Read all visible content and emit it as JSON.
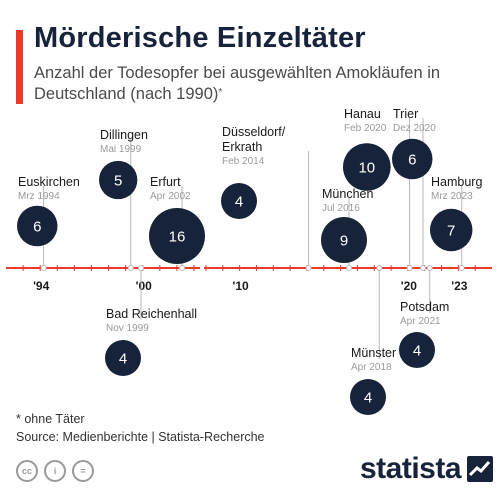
{
  "header": {
    "title": "Mörderische Einzeltäter",
    "subtitle": "Anzahl der Todesopfer bei ausgewählten Amokläufen in Deutschland (nach 1990)",
    "subtitle_mark": "*"
  },
  "chart_data": {
    "type": "timeline",
    "axis_range": [
      1992,
      2025
    ],
    "axis_break": [
      2003,
      2008
    ],
    "axis_labels": [
      "'94",
      "'00",
      "'10",
      "'20",
      "'23"
    ],
    "axis_label_years": [
      1994,
      2000,
      2010,
      2020,
      2023
    ],
    "events": [
      {
        "place": "Euskirchen",
        "date": "Mrz 1994",
        "year": 1994.2,
        "victims": 6,
        "side": "above"
      },
      {
        "place": "Dillingen",
        "date": "Mai 1999",
        "year": 1999.3,
        "victims": 5,
        "side": "above"
      },
      {
        "place": "Bad Reichenhall",
        "date": "Nov 1999",
        "year": 1999.9,
        "victims": 4,
        "side": "below"
      },
      {
        "place": "Erfurt",
        "date": "Apr 2002",
        "year": 2002.3,
        "victims": 16,
        "side": "above"
      },
      {
        "place": "Düsseldorf/ Erkrath",
        "date": "Feb 2014",
        "year": 2014.1,
        "victims": 4,
        "side": "above"
      },
      {
        "place": "München",
        "date": "Jul 2016",
        "year": 2016.5,
        "victims": 9,
        "side": "above"
      },
      {
        "place": "Münster",
        "date": "Apr 2018",
        "year": 2018.3,
        "victims": 4,
        "side": "below"
      },
      {
        "place": "Hanau",
        "date": "Feb 2020",
        "year": 2020.1,
        "victims": 10,
        "side": "above"
      },
      {
        "place": "Trier",
        "date": "Dez 2020",
        "year": 2020.9,
        "victims": 6,
        "side": "above"
      },
      {
        "place": "Potsdam",
        "date": "Apr 2021",
        "year": 2021.3,
        "victims": 4,
        "side": "below"
      },
      {
        "place": "Hamburg",
        "date": "Mrz 2023",
        "year": 2023.2,
        "victims": 7,
        "side": "above"
      }
    ]
  },
  "footer": {
    "footnote": "* ohne Täter",
    "source": "Source: Medienberichte | Statista-Recherche",
    "license_icons": [
      "cc-icon",
      "person-icon",
      "equals-icon"
    ],
    "license_glyphs": [
      "cc",
      "i",
      "="
    ],
    "brand": "statista"
  },
  "colors": {
    "accent": "#e8392b",
    "timeline": "#e8392b",
    "bubble": "#16233a",
    "bubble_text": "#ffffff",
    "connector": "#b8b8b8",
    "date_text": "#9a9a9a"
  }
}
